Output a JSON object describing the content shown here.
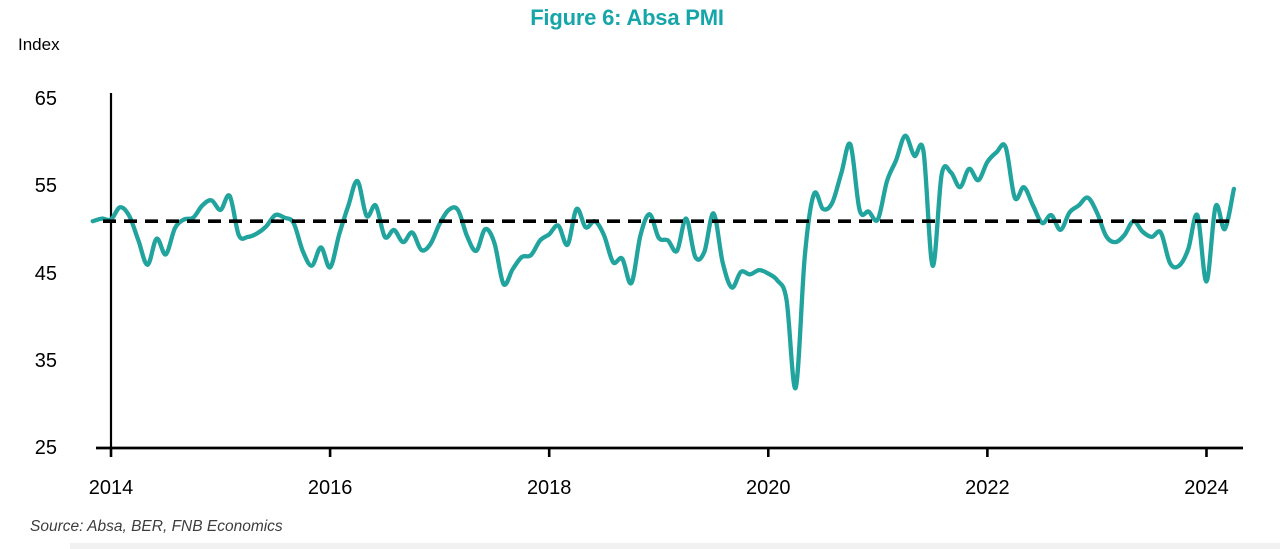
{
  "page": {
    "title": "Figure 6: Absa PMI",
    "y_axis_label": "Index",
    "source_note": "Source: Absa, BER, FNB Economics"
  },
  "chart_data": {
    "type": "line",
    "title": "Figure 6: Absa PMI",
    "ylabel": "Index",
    "xlabel": "",
    "frequency": "monthly",
    "x_start": "2013-11",
    "x_end": "2024-04",
    "x_tick_labels": [
      "2014",
      "2016",
      "2018",
      "2020",
      "2022",
      "2024"
    ],
    "y_ticks": [
      65,
      55,
      45,
      35,
      25
    ],
    "ylim": [
      25,
      65
    ],
    "grid": false,
    "legend": "none",
    "line_color": "#21A39E",
    "title_color": "#16A6A9",
    "reference_line": {
      "value": 51,
      "style": "dashed",
      "color": "#000000",
      "meaning": "long-term average"
    },
    "series": [
      {
        "name": "Absa PMI",
        "start": "2013-11",
        "values": [
          51.0,
          51.3,
          51.2,
          52.6,
          51.6,
          48.8,
          46.0,
          49.0,
          47.2,
          50.2,
          51.2,
          51.4,
          52.8,
          53.4,
          52.3,
          53.9,
          49.4,
          49.2,
          49.6,
          50.4,
          51.7,
          51.4,
          50.8,
          47.6,
          45.9,
          48.0,
          45.7,
          49.5,
          52.8,
          55.6,
          51.6,
          52.8,
          49.2,
          50.0,
          48.6,
          49.7,
          47.7,
          48.4,
          50.7,
          52.3,
          52.3,
          49.3,
          47.6,
          50.1,
          48.5,
          43.8,
          45.5,
          46.9,
          47.1,
          48.8,
          49.5,
          50.5,
          48.3,
          52.4,
          50.3,
          51.0,
          49.4,
          46.3,
          46.7,
          43.9,
          49.4,
          51.8,
          49.1,
          48.8,
          47.6,
          51.3,
          46.9,
          47.5,
          51.9,
          46.3,
          43.4,
          45.2,
          44.9,
          45.4,
          45.0,
          44.2,
          42.0,
          31.9,
          47.0,
          54.1,
          52.4,
          53.1,
          56.5,
          59.8,
          52.3,
          52.1,
          51.2,
          55.6,
          58.0,
          60.8,
          58.5,
          59.0,
          45.9,
          56.4,
          56.6,
          54.9,
          57.0,
          55.7,
          57.8,
          58.9,
          59.5,
          53.7,
          54.9,
          52.8,
          50.8,
          51.7,
          50.0,
          52.0,
          52.8,
          53.7,
          52.0,
          49.3,
          48.6,
          49.4,
          51.0,
          49.8,
          49.2,
          49.7,
          46.2,
          45.9,
          47.8,
          51.7,
          44.1,
          52.7,
          50.1,
          54.7
        ]
      }
    ]
  }
}
